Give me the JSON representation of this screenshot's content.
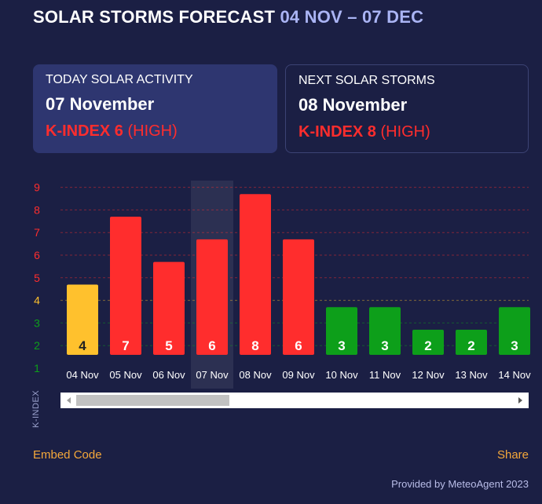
{
  "header": {
    "title": "SOLAR STORMS FORECAST",
    "range": "04 NOV – 07 DEC"
  },
  "today": {
    "label": "TODAY SOLAR ACTIVITY",
    "date": "07 November",
    "kindex_prefix": "K-INDEX 6",
    "kindex_level": "(HIGH)"
  },
  "next": {
    "label": "NEXT SOLAR STORMS",
    "date": "08 November",
    "kindex_prefix": "K-INDEX 8",
    "kindex_level": "(HIGH)"
  },
  "colors": {
    "background": "#1b1f44",
    "high": "#ff2d2d",
    "moderate": "#ffc12d",
    "low": "#0d9f1a",
    "accent": "#aab4f4",
    "link": "#f5a83a"
  },
  "chart_data": {
    "type": "bar",
    "ylabel": "K-INDEX",
    "ylim": [
      1,
      9
    ],
    "yticks": [
      1,
      2,
      3,
      4,
      5,
      6,
      7,
      8,
      9
    ],
    "categories": [
      "04 Nov",
      "05 Nov",
      "06 Nov",
      "07 Nov",
      "08 Nov",
      "09 Nov",
      "10 Nov",
      "11 Nov",
      "12 Nov",
      "13 Nov",
      "14 Nov"
    ],
    "values": [
      4,
      7,
      5,
      6,
      8,
      6,
      3,
      3,
      2,
      2,
      3
    ],
    "highlight": "07 Nov",
    "levels": {
      "low": "1-3",
      "moderate": "4",
      "high": "5-9"
    }
  },
  "footer": {
    "embed": "Embed Code",
    "share": "Share",
    "provided": "Provided by MeteoAgent 2023"
  }
}
